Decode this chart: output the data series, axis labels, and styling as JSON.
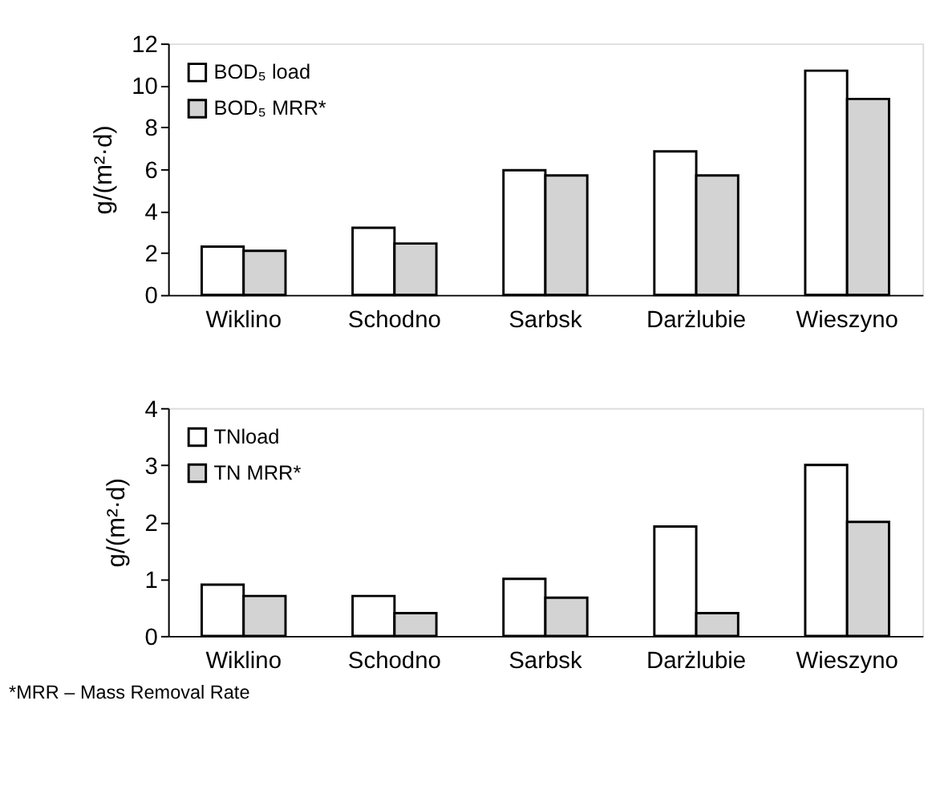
{
  "chart_data": [
    {
      "type": "bar",
      "categories": [
        "Wiklino",
        "Schodno",
        "Sarbsk",
        "Darżlubie",
        "Wieszyno"
      ],
      "ylabel": "g/(m²·d)",
      "ylim": [
        0,
        12
      ],
      "yticks": [
        0,
        2,
        4,
        6,
        8,
        10,
        12
      ],
      "grid": false,
      "legend": "top left",
      "series": [
        {
          "name": "BOD₅ load",
          "color": "#ffffff",
          "values": [
            2.3,
            3.2,
            5.95,
            6.85,
            10.7
          ]
        },
        {
          "name": "BOD₅ MRR*",
          "color": "#d3d3d3",
          "values": [
            2.1,
            2.45,
            5.7,
            5.7,
            9.35
          ]
        }
      ]
    },
    {
      "type": "bar",
      "categories": [
        "Wiklino",
        "Schodno",
        "Sarbsk",
        "Darżlubie",
        "Wieszyno"
      ],
      "ylabel": "g/(m²·d)",
      "ylim": [
        0,
        4
      ],
      "yticks": [
        0,
        1,
        2,
        3,
        4
      ],
      "grid": false,
      "legend": "top left",
      "series": [
        {
          "name": "TNload",
          "color": "#ffffff",
          "values": [
            0.9,
            0.7,
            1.0,
            1.92,
            3.0
          ]
        },
        {
          "name": "TN MRR*",
          "color": "#d3d3d3",
          "values": [
            0.7,
            0.4,
            0.67,
            0.4,
            2.0
          ]
        }
      ],
      "annotations": [
        "*MRR – Mass Removal Rate"
      ]
    }
  ]
}
